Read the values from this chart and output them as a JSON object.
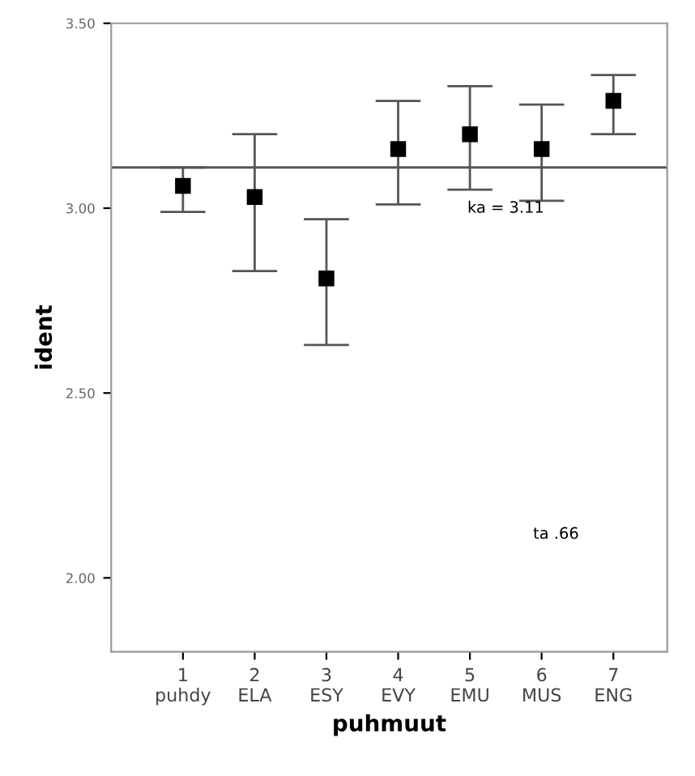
{
  "chart_data": {
    "type": "scatter",
    "xlabel": "puhmuut",
    "ylabel": "ident",
    "x": [
      1,
      2,
      3,
      4,
      5,
      6,
      7
    ],
    "series": [
      {
        "color": "#000000",
        "values": [
          3.06,
          3.03,
          2.81,
          3.16,
          3.2,
          3.16,
          3.29
        ],
        "errors": [
          [
            2.99,
            3.11
          ],
          [
            2.83,
            3.2
          ],
          [
            2.63,
            2.97
          ],
          [
            3.01,
            3.29
          ],
          [
            3.05,
            3.33
          ],
          [
            3.02,
            3.28
          ],
          [
            3.2,
            3.36
          ]
        ]
      }
    ],
    "marker": "square",
    "xlim": [
      0,
      7.75
    ],
    "xticks": [
      {
        "value": 1,
        "label": "1\npuhdy"
      },
      {
        "value": 2,
        "label": "2\nELA"
      },
      {
        "value": 3,
        "label": "3\nESY"
      },
      {
        "value": 4,
        "label": "4\nEVY"
      },
      {
        "value": 5,
        "label": "5\nEMU"
      },
      {
        "value": 6,
        "label": "6\nMUS"
      },
      {
        "value": 7,
        "label": "7\nENG"
      }
    ],
    "ylim": [
      1.8,
      3.5
    ],
    "yticks": [
      {
        "value": 2.0,
        "label": "2.00"
      },
      {
        "value": 2.5,
        "label": "2.50"
      },
      {
        "value": 3.0,
        "label": "3.00"
      },
      {
        "value": 3.5,
        "label": "3.50"
      }
    ],
    "ref_lines": [
      {
        "axis": "y",
        "value": 3.11,
        "label": "ka = 3.11",
        "color": "#555555"
      }
    ],
    "annotations": [
      "ta .66"
    ],
    "grid": false,
    "legend": false
  }
}
